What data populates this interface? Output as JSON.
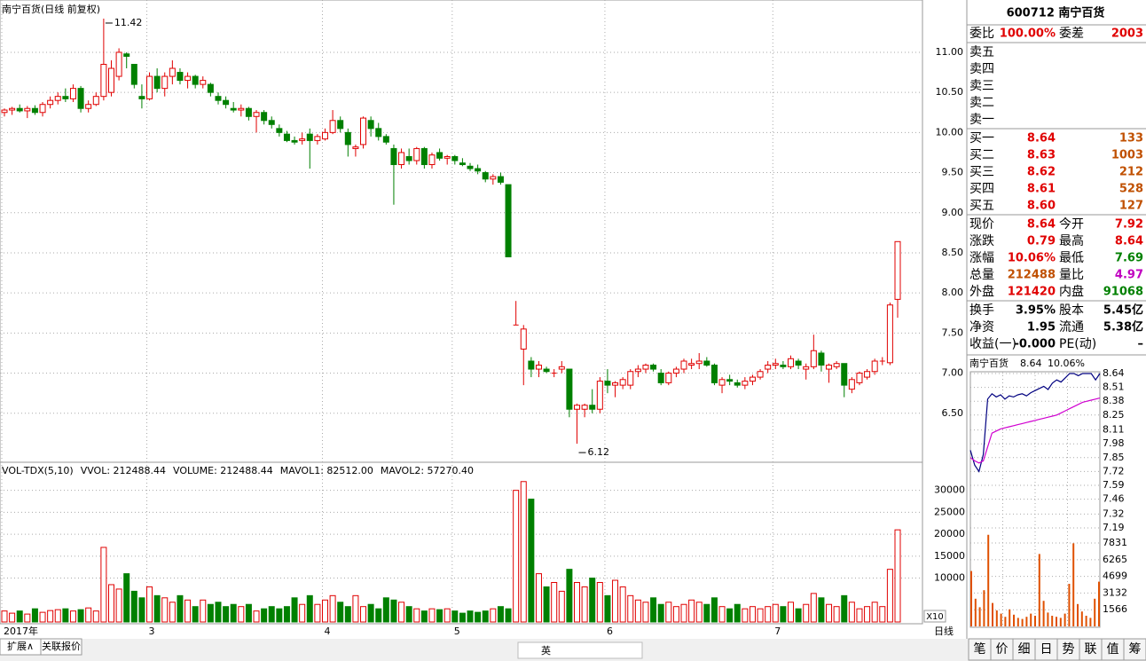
{
  "window": {
    "title": "南宁百货(日线 前复权)",
    "period_button": "日线",
    "scale_label": "X10",
    "left_tabs": [
      "扩展∧",
      "关联报价"
    ],
    "right_tabs": [
      "笔",
      "价",
      "细",
      "日",
      "势",
      "联",
      "值",
      "筹"
    ],
    "ime_bar": [
      "英"
    ]
  },
  "indicator_legend": [
    "VOL-TDX(5,10)",
    "VVOL: 212488.44",
    "VOLUME: 212488.44",
    "MAVOL1: 82512.00",
    "MAVOL2: 57270.40"
  ],
  "quote_panel": {
    "code_name": "600712 南宁百货",
    "commission": [
      "委比",
      "100.00%",
      "委差",
      "2003"
    ],
    "asks": [
      "卖五",
      "卖四",
      "卖三",
      "卖二",
      "卖一"
    ],
    "bids": [
      [
        "买一",
        "8.64",
        "133"
      ],
      [
        "买二",
        "8.63",
        "1003"
      ],
      [
        "买三",
        "8.62",
        "212"
      ],
      [
        "买四",
        "8.61",
        "528"
      ],
      [
        "买五",
        "8.60",
        "127"
      ]
    ],
    "stats": [
      [
        "现价",
        "8.64",
        "今开",
        "7.92"
      ],
      [
        "涨跌",
        "0.79",
        "最高",
        "8.64"
      ],
      [
        "涨幅",
        "10.06%",
        "最低",
        "7.69"
      ],
      [
        "总量",
        "212488",
        "量比",
        "4.97"
      ],
      [
        "外盘",
        "121420",
        "内盘",
        "91068"
      ]
    ],
    "fundamentals": [
      [
        "换手",
        "3.95%",
        "股本",
        "5.45亿"
      ],
      [
        "净资",
        "1.95",
        "流通",
        "5.38亿"
      ],
      [
        "收益(一)",
        "-0.000",
        "PE(动)",
        "–"
      ]
    ],
    "mini_header": [
      "南宁百货",
      "8.64",
      "10.06%"
    ]
  },
  "chart_data": [
    {
      "type": "candlestick",
      "ylim": [
        5.9,
        11.63
      ],
      "yticks": [
        {
          "value": 6.5,
          "label": "6.50"
        },
        {
          "value": 7,
          "label": "7.00"
        },
        {
          "value": 7.5,
          "label": "7.50"
        },
        {
          "value": 8,
          "label": "8.00"
        },
        {
          "value": 8.5,
          "label": "8.50"
        },
        {
          "value": 9,
          "label": "9.00"
        },
        {
          "value": 9.5,
          "label": "9.50"
        },
        {
          "value": 10,
          "label": "10.00"
        },
        {
          "value": 10.5,
          "label": "10.50"
        },
        {
          "value": 11,
          "label": "11.00"
        }
      ],
      "grid": true,
      "up_color": "#e00000",
      "down_color": "#008000",
      "annotations": [
        "11.42",
        "6.12"
      ],
      "categories": [
        "2017年",
        null,
        null,
        null,
        null,
        null,
        null,
        null,
        null,
        null,
        null,
        null,
        null,
        null,
        null,
        null,
        null,
        null,
        null,
        "3",
        null,
        null,
        null,
        null,
        null,
        null,
        null,
        null,
        null,
        null,
        null,
        null,
        null,
        null,
        null,
        null,
        null,
        null,
        null,
        null,
        null,
        null,
        "4",
        null,
        null,
        null,
        null,
        null,
        null,
        null,
        null,
        null,
        null,
        null,
        null,
        null,
        null,
        null,
        null,
        "5",
        null,
        null,
        null,
        null,
        null,
        null,
        null,
        null,
        null,
        null,
        null,
        null,
        null,
        null,
        null,
        null,
        null,
        null,
        null,
        "6",
        null,
        null,
        null,
        null,
        null,
        null,
        null,
        null,
        null,
        null,
        null,
        null,
        null,
        null,
        null,
        null,
        null,
        null,
        null,
        null,
        null,
        "7",
        null,
        null,
        null,
        null,
        null,
        null,
        null,
        null,
        null,
        null,
        null,
        null,
        null,
        null,
        null,
        null
      ],
      "ohlc": [
        [
          10.25,
          10.3,
          10.2,
          10.28
        ],
        [
          10.28,
          10.32,
          10.22,
          10.3
        ],
        [
          10.3,
          10.35,
          10.25,
          10.27
        ],
        [
          10.27,
          10.33,
          10.18,
          10.3
        ],
        [
          10.3,
          10.34,
          10.22,
          10.25
        ],
        [
          10.25,
          10.38,
          10.2,
          10.35
        ],
        [
          10.35,
          10.45,
          10.3,
          10.4
        ],
        [
          10.4,
          10.5,
          10.35,
          10.45
        ],
        [
          10.45,
          10.55,
          10.38,
          10.42
        ],
        [
          10.42,
          10.6,
          10.38,
          10.55
        ],
        [
          10.55,
          10.58,
          10.25,
          10.3
        ],
        [
          10.3,
          10.4,
          10.25,
          10.35
        ],
        [
          10.35,
          10.5,
          10.33,
          10.45
        ],
        [
          10.45,
          11.42,
          10.4,
          10.85
        ],
        [
          10.5,
          10.9,
          10.45,
          10.8
        ],
        [
          10.7,
          11.05,
          10.65,
          11.0
        ],
        [
          10.98,
          11.0,
          10.8,
          10.95
        ],
        [
          10.85,
          10.85,
          10.55,
          10.6
        ],
        [
          10.45,
          10.6,
          10.3,
          10.42
        ],
        [
          10.42,
          10.75,
          10.4,
          10.7
        ],
        [
          10.7,
          10.8,
          10.5,
          10.55
        ],
        [
          10.55,
          10.75,
          10.45,
          10.7
        ],
        [
          10.7,
          10.9,
          10.6,
          10.8
        ],
        [
          10.75,
          10.8,
          10.6,
          10.65
        ],
        [
          10.65,
          10.75,
          10.55,
          10.7
        ],
        [
          10.7,
          10.72,
          10.55,
          10.6
        ],
        [
          10.6,
          10.7,
          10.55,
          10.65
        ],
        [
          10.6,
          10.62,
          10.45,
          10.5
        ],
        [
          10.45,
          10.5,
          10.35,
          10.4
        ],
        [
          10.4,
          10.45,
          10.3,
          10.35
        ],
        [
          10.3,
          10.38,
          10.25,
          10.28
        ],
        [
          10.28,
          10.35,
          10.2,
          10.3
        ],
        [
          10.3,
          10.32,
          10.15,
          10.2
        ],
        [
          10.2,
          10.28,
          10.0,
          10.25
        ],
        [
          10.25,
          10.28,
          10.1,
          10.15
        ],
        [
          10.15,
          10.2,
          10.05,
          10.1
        ],
        [
          10.05,
          10.1,
          9.95,
          10.0
        ],
        [
          9.98,
          10.02,
          9.88,
          9.9
        ],
        [
          9.9,
          9.95,
          9.85,
          9.88
        ],
        [
          9.9,
          10.0,
          9.85,
          9.92
        ],
        [
          9.98,
          10.05,
          9.55,
          9.9
        ],
        [
          9.9,
          9.98,
          9.85,
          9.95
        ],
        [
          9.92,
          10.05,
          9.9,
          10.0
        ],
        [
          10.0,
          10.28,
          9.98,
          10.15
        ],
        [
          10.15,
          10.2,
          10.0,
          10.05
        ],
        [
          10.0,
          10.05,
          9.7,
          9.85
        ],
        [
          9.8,
          9.85,
          9.7,
          9.82
        ],
        [
          9.85,
          10.2,
          9.8,
          10.18
        ],
        [
          10.15,
          10.2,
          9.95,
          10.05
        ],
        [
          10.05,
          10.12,
          9.9,
          9.95
        ],
        [
          9.95,
          9.98,
          9.85,
          9.88
        ],
        [
          9.8,
          9.85,
          9.1,
          9.6
        ],
        [
          9.6,
          9.8,
          9.55,
          9.75
        ],
        [
          9.7,
          9.8,
          9.6,
          9.65
        ],
        [
          9.65,
          9.82,
          9.6,
          9.8
        ],
        [
          9.8,
          9.82,
          9.55,
          9.6
        ],
        [
          9.6,
          9.75,
          9.55,
          9.72
        ],
        [
          9.75,
          9.8,
          9.65,
          9.68
        ],
        [
          9.68,
          9.72,
          9.6,
          9.7
        ],
        [
          9.7,
          9.72,
          9.6,
          9.65
        ],
        [
          9.62,
          9.68,
          9.58,
          9.6
        ],
        [
          9.58,
          9.62,
          9.52,
          9.55
        ],
        [
          9.55,
          9.6,
          9.48,
          9.52
        ],
        [
          9.5,
          9.52,
          9.38,
          9.42
        ],
        [
          9.42,
          9.48,
          9.35,
          9.45
        ],
        [
          9.45,
          9.5,
          9.35,
          9.38
        ],
        [
          9.35,
          9.35,
          8.45,
          8.45
        ],
        [
          7.6,
          7.9,
          7.6,
          7.6
        ],
        [
          7.3,
          7.6,
          6.85,
          7.55
        ],
        [
          7.15,
          7.2,
          6.95,
          7.05
        ],
        [
          7.05,
          7.15,
          6.95,
          7.1
        ],
        [
          7.05,
          7.08,
          7.0,
          7.02
        ],
        [
          7.0,
          7.05,
          6.95,
          7.0
        ],
        [
          7.05,
          7.15,
          7.0,
          7.08
        ],
        [
          7.05,
          7.05,
          6.45,
          6.55
        ],
        [
          6.55,
          6.62,
          6.12,
          6.6
        ],
        [
          6.55,
          6.62,
          6.45,
          6.6
        ],
        [
          6.6,
          6.8,
          6.5,
          6.55
        ],
        [
          6.55,
          6.95,
          6.5,
          6.9
        ],
        [
          6.9,
          7.05,
          6.75,
          6.85
        ],
        [
          6.85,
          6.9,
          6.7,
          6.88
        ],
        [
          6.85,
          6.95,
          6.8,
          6.92
        ],
        [
          6.85,
          7.05,
          6.8,
          7.02
        ],
        [
          7.02,
          7.1,
          6.95,
          7.05
        ],
        [
          7.05,
          7.12,
          7.0,
          7.1
        ],
        [
          7.1,
          7.12,
          7.02,
          7.05
        ],
        [
          7.0,
          7.05,
          6.85,
          6.88
        ],
        [
          6.88,
          7.02,
          6.85,
          7.0
        ],
        [
          7.0,
          7.08,
          6.95,
          7.05
        ],
        [
          7.05,
          7.18,
          7.0,
          7.15
        ],
        [
          7.1,
          7.18,
          7.05,
          7.12
        ],
        [
          7.12,
          7.25,
          7.05,
          7.15
        ],
        [
          7.15,
          7.2,
          7.08,
          7.1
        ],
        [
          7.1,
          7.12,
          6.85,
          6.88
        ],
        [
          6.85,
          6.95,
          6.75,
          6.92
        ],
        [
          6.92,
          6.98,
          6.85,
          6.9
        ],
        [
          6.88,
          6.92,
          6.82,
          6.85
        ],
        [
          6.85,
          6.95,
          6.8,
          6.9
        ],
        [
          6.9,
          6.98,
          6.85,
          6.95
        ],
        [
          6.95,
          7.05,
          6.92,
          7.02
        ],
        [
          7.05,
          7.15,
          7.0,
          7.1
        ],
        [
          7.1,
          7.18,
          7.05,
          7.12
        ],
        [
          7.1,
          7.15,
          7.05,
          7.08
        ],
        [
          7.08,
          7.22,
          7.05,
          7.18
        ],
        [
          7.15,
          7.18,
          7.05,
          7.1
        ],
        [
          7.05,
          7.12,
          6.92,
          7.08
        ],
        [
          7.08,
          7.48,
          7.05,
          7.28
        ],
        [
          7.25,
          7.28,
          7.02,
          7.1
        ],
        [
          7.05,
          7.12,
          6.88,
          7.1
        ],
        [
          7.08,
          7.15,
          7.05,
          7.12
        ],
        [
          7.12,
          7.12,
          6.7,
          6.85
        ],
        [
          6.8,
          6.95,
          6.75,
          6.92
        ],
        [
          6.88,
          7.02,
          6.85,
          7.0
        ],
        [
          6.95,
          7.05,
          6.92,
          7.02
        ],
        [
          7.02,
          7.18,
          6.98,
          7.15
        ],
        [
          7.15,
          7.2,
          7.1,
          7.15
        ],
        [
          7.13,
          7.88,
          7.1,
          7.85
        ],
        [
          7.92,
          8.64,
          7.69,
          8.64
        ]
      ]
    },
    {
      "type": "bar",
      "ylim": [
        0,
        36000
      ],
      "yticks": [
        10000,
        15000,
        20000,
        25000,
        30000
      ],
      "grid": true,
      "values": [
        2500,
        2000,
        2500,
        1800,
        3000,
        2200,
        2600,
        2800,
        3000,
        2500,
        2800,
        3200,
        2500,
        17000,
        8500,
        7500,
        11000,
        7000,
        5500,
        8000,
        6000,
        5500,
        4500,
        6000,
        5000,
        3500,
        5000,
        4000,
        4500,
        3500,
        4000,
        3500,
        4000,
        2500,
        3000,
        3500,
        3000,
        3500,
        5500,
        4000,
        6000,
        4000,
        5000,
        6000,
        4500,
        3500,
        6000,
        3500,
        4000,
        3000,
        5500,
        5000,
        4500,
        3500,
        3000,
        2500,
        3000,
        2800,
        3000,
        2500,
        2000,
        2500,
        2200,
        2500,
        3000,
        3500,
        3000,
        30000,
        32000,
        28000,
        11000,
        8000,
        9000,
        7000,
        12000,
        9000,
        8000,
        10000,
        9000,
        6000,
        9500,
        8000,
        6000,
        5000,
        4500,
        5500,
        4000,
        4500,
        3500,
        4000,
        5000,
        4500,
        4000,
        5500,
        3500,
        3000,
        4000,
        3000,
        3500,
        3000,
        3500,
        4000,
        3500,
        4500,
        3000,
        4000,
        6500,
        5500,
        4000,
        3500,
        6000,
        4500,
        3000,
        3500,
        4500,
        3500,
        12000,
        21000
      ]
    },
    {
      "type": "line",
      "ylim": [
        7.19,
        8.64
      ],
      "yticks": [
        7.19,
        7.32,
        7.46,
        7.59,
        7.72,
        7.85,
        7.98,
        8.11,
        8.25,
        8.38,
        8.51,
        8.64
      ],
      "series": [
        {
          "color": "#000080",
          "values": [
            7.92,
            7.78,
            7.72,
            7.88,
            8.4,
            8.45,
            8.42,
            8.44,
            8.4,
            8.43,
            8.42,
            8.44,
            8.45,
            8.43,
            8.46,
            8.48,
            8.5,
            8.52,
            8.49,
            8.55,
            8.58,
            8.56,
            8.6,
            8.64,
            8.64,
            8.62,
            8.64,
            8.64,
            8.64,
            8.58,
            8.64
          ]
        },
        {
          "color": "#d000d0",
          "values": [
            7.85,
            7.82,
            7.8,
            7.82,
            7.95,
            8.08,
            8.1,
            8.12,
            8.13,
            8.14,
            8.15,
            8.16,
            8.17,
            8.18,
            8.19,
            8.2,
            8.21,
            8.22,
            8.23,
            8.24,
            8.25,
            8.27,
            8.29,
            8.31,
            8.33,
            8.35,
            8.37,
            8.38,
            8.39,
            8.4,
            8.41
          ]
        }
      ]
    },
    {
      "type": "bar",
      "ylim": [
        0,
        9000
      ],
      "yticks": [
        1566,
        3132,
        4699,
        6265,
        7831
      ],
      "color": "#e05000",
      "values": [
        5200,
        2600,
        1800,
        3400,
        8600,
        2200,
        1500,
        1200,
        900,
        1600,
        1100,
        800,
        700,
        900,
        1200,
        1000,
        6800,
        2400,
        1300,
        1000,
        900,
        800,
        1200,
        4000,
        7800,
        2100,
        1400,
        1000,
        800,
        2600,
        4200
      ]
    }
  ]
}
